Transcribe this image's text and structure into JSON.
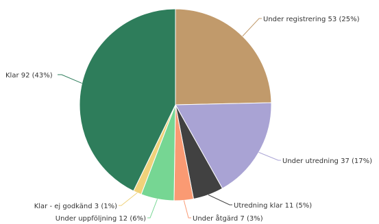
{
  "chart_data": {
    "type": "pie",
    "title": "",
    "start_angle_deg": 0,
    "direction": "clockwise",
    "slices": [
      {
        "label": "Under registrering",
        "value": 53,
        "percent": "25%",
        "display": "Under registrering 53 (25%)",
        "color": "#c19a6b"
      },
      {
        "label": "Under utredning",
        "value": 37,
        "percent": "17%",
        "display": "Under utredning 37 (17%)",
        "color": "#a9a3d4"
      },
      {
        "label": "Utredning klar",
        "value": 11,
        "percent": "5%",
        "display": "Utredning klar 11 (5%)",
        "color": "#414141"
      },
      {
        "label": "Under åtgärd",
        "value": 7,
        "percent": "3%",
        "display": "Under åtgärd 7 (3%)",
        "color": "#fa9a73"
      },
      {
        "label": "Under uppföljning",
        "value": 12,
        "percent": "6%",
        "display": "Under uppföljning 12 (6%)",
        "color": "#76d693"
      },
      {
        "label": "Klar - ej godkänd",
        "value": 3,
        "percent": "1%",
        "display": "Klar - ej godkänd 3 (1%)",
        "color": "#f0d27a"
      },
      {
        "label": "Klar",
        "value": 92,
        "percent": "43%",
        "display": "Klar 92 (43%)",
        "color": "#2e7d5b"
      }
    ]
  }
}
